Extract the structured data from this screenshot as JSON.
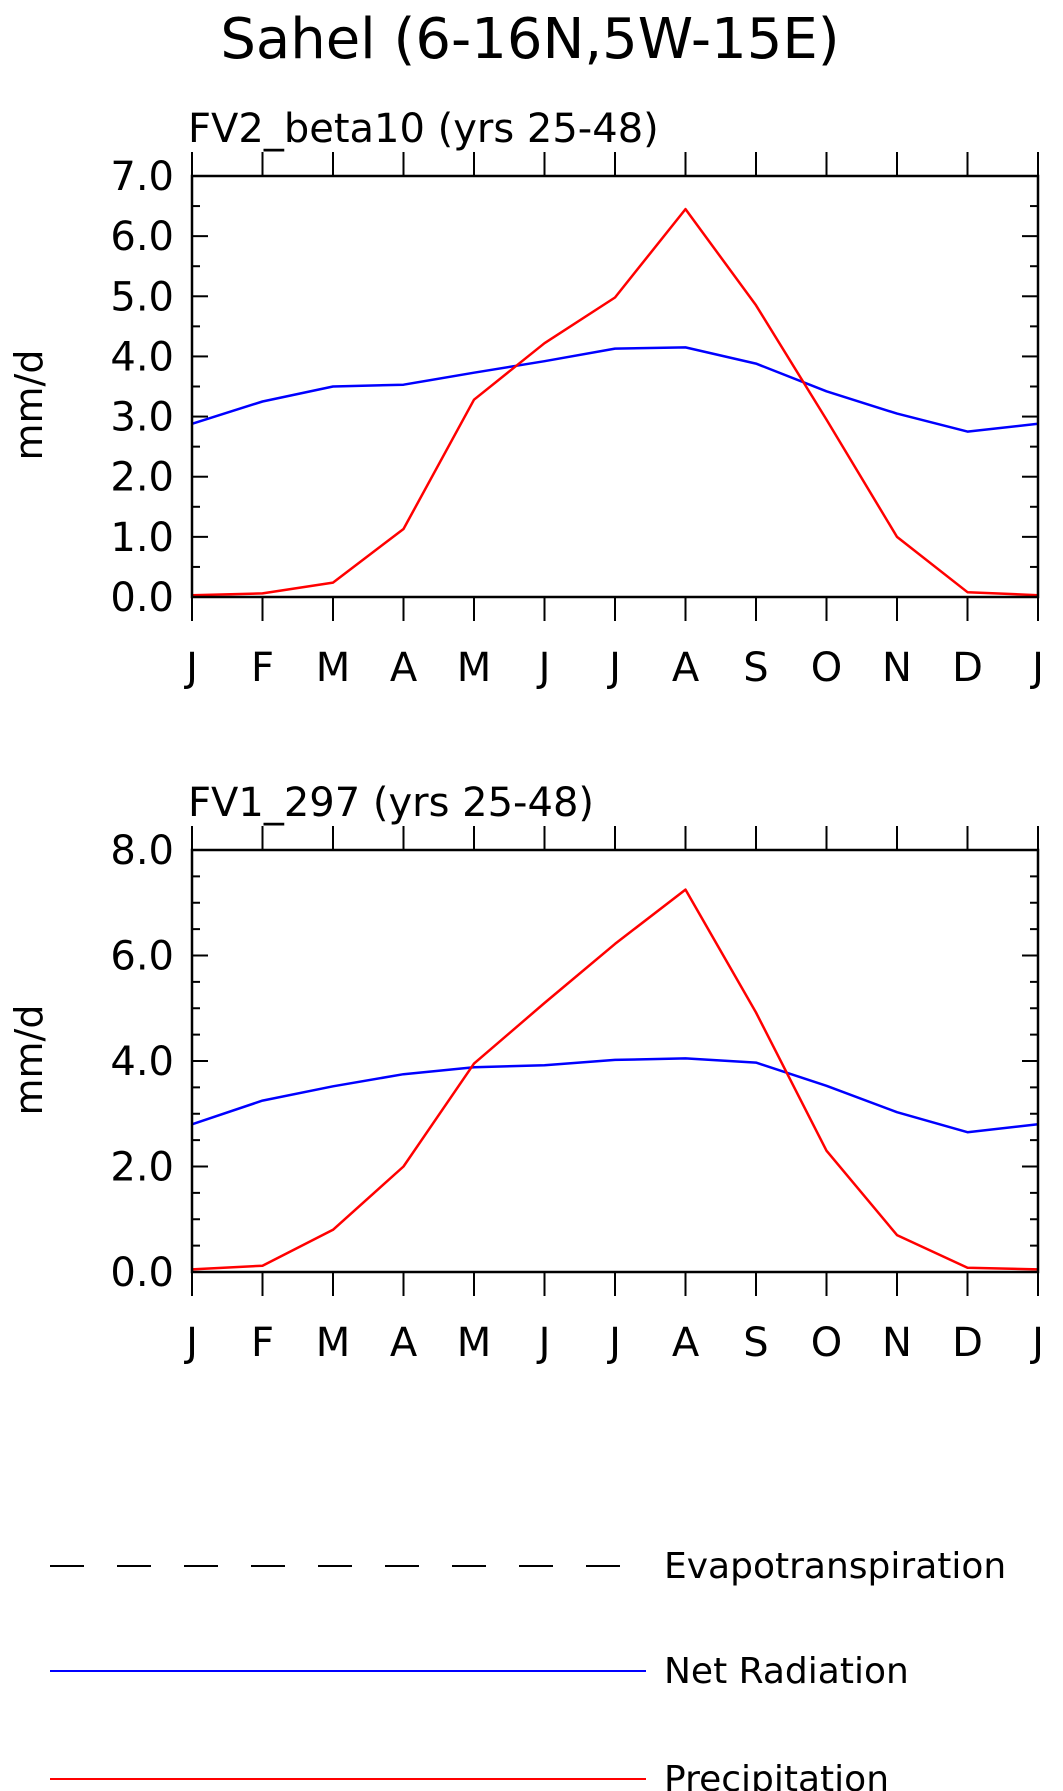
{
  "title": "Sahel (6-16N,5W-15E)",
  "chart_data": [
    {
      "type": "line",
      "title": "FV2_beta10 (yrs 25-48)",
      "ylabel": "mm/d",
      "ylim": [
        0,
        7
      ],
      "yticks": [
        "0.0",
        "1.0",
        "2.0",
        "3.0",
        "4.0",
        "5.0",
        "6.0",
        "7.0"
      ],
      "categories": [
        "J",
        "F",
        "M",
        "A",
        "M",
        "J",
        "J",
        "A",
        "S",
        "O",
        "N",
        "D",
        "J"
      ],
      "series": [
        {
          "name": "Net Radiation",
          "color": "#0000ff",
          "values": [
            2.88,
            3.25,
            3.5,
            3.53,
            3.73,
            3.92,
            4.13,
            4.15,
            3.88,
            3.42,
            3.05,
            2.75,
            2.88
          ]
        },
        {
          "name": "Precipitation",
          "color": "#ff0000",
          "values": [
            0.03,
            0.06,
            0.24,
            1.13,
            3.28,
            4.22,
            4.98,
            6.45,
            4.85,
            2.95,
            1.0,
            0.08,
            0.03
          ]
        }
      ]
    },
    {
      "type": "line",
      "title": "FV1_297 (yrs 25-48)",
      "ylabel": "mm/d",
      "ylim": [
        0,
        8
      ],
      "yticks": [
        "0.0",
        "2.0",
        "4.0",
        "6.0",
        "8.0"
      ],
      "categories": [
        "J",
        "F",
        "M",
        "A",
        "M",
        "J",
        "J",
        "A",
        "S",
        "O",
        "N",
        "D",
        "J"
      ],
      "series": [
        {
          "name": "Net Radiation",
          "color": "#0000ff",
          "values": [
            2.8,
            3.25,
            3.52,
            3.75,
            3.88,
            3.92,
            4.02,
            4.05,
            3.97,
            3.53,
            3.03,
            2.65,
            2.8
          ]
        },
        {
          "name": "Precipitation",
          "color": "#ff0000",
          "values": [
            0.05,
            0.12,
            0.8,
            2.0,
            3.95,
            5.1,
            6.22,
            7.25,
            4.92,
            2.3,
            0.7,
            0.08,
            0.05
          ]
        }
      ]
    }
  ],
  "legend": [
    {
      "label": "Evapotranspiration",
      "color": "#000000",
      "style": "dashed"
    },
    {
      "label": "Net Radiation",
      "color": "#0000ff",
      "style": "solid"
    },
    {
      "label": "Precipitation",
      "color": "#ff0000",
      "style": "solid"
    }
  ]
}
